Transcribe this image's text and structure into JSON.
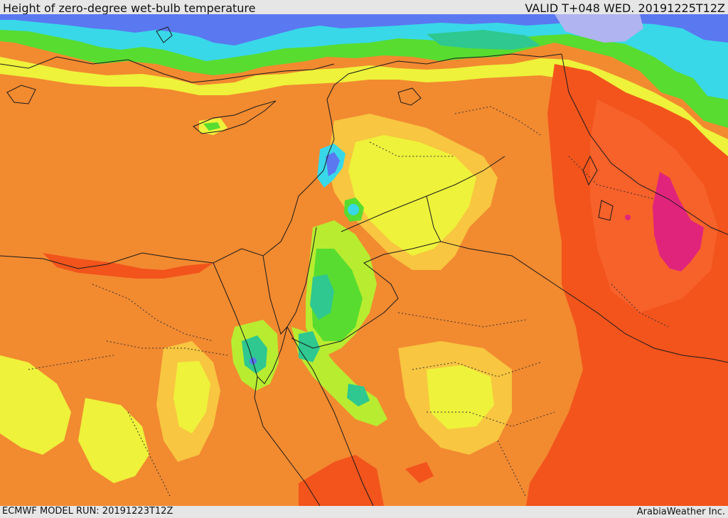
{
  "header": {
    "title": "Height of zero-degree wet-bulb temperature",
    "valid_time": "VALID T+048 WED. 20191225T12Z"
  },
  "footer": {
    "model_run": "ECMWF MODEL RUN: 20191223T12Z",
    "credit": "ArabiaWeather Inc."
  },
  "colors": {
    "base_orange": "#f28a30",
    "light_orange": "#f7a238",
    "yellow_orange": "#f8c640",
    "yellow": "#eef23a",
    "yellow_green": "#b8ec30",
    "green": "#58dc30",
    "teal": "#2ec890",
    "cyan": "#38d8e8",
    "blue": "#5a78f0",
    "lavender": "#b0b4f0",
    "red_orange": "#f2541c",
    "magenta": "#e0247c"
  }
}
